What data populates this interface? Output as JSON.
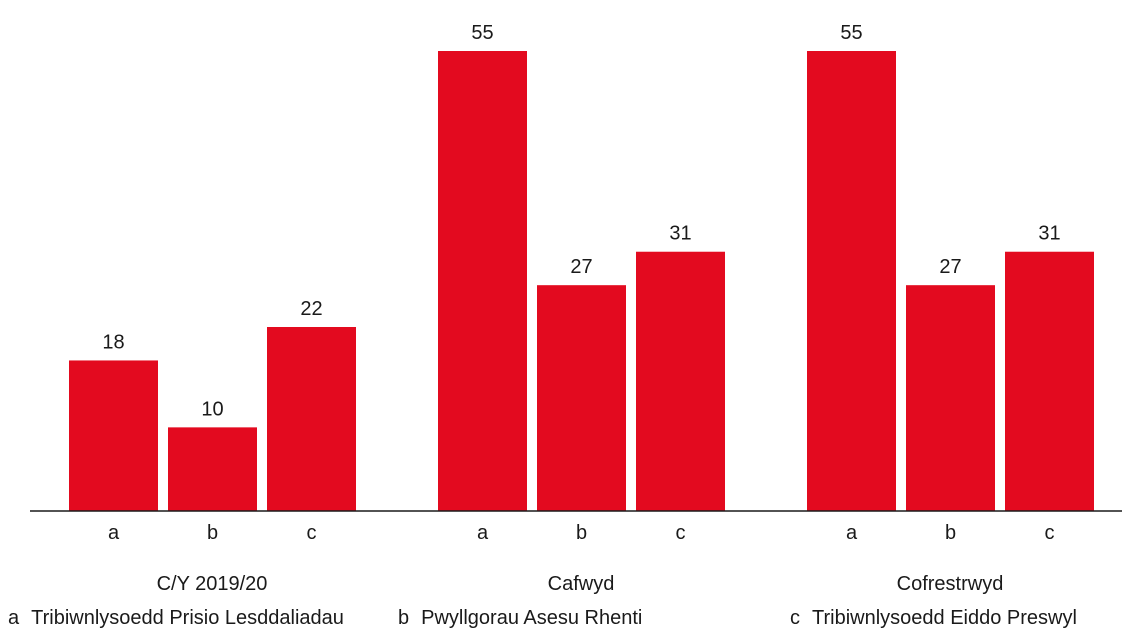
{
  "chart_data": {
    "type": "bar",
    "title": "",
    "xlabel": "",
    "ylabel": "",
    "ylim": [
      0,
      55
    ],
    "bar_color": "#e30a1f",
    "axis_color": "#1a1a1a",
    "groups": [
      {
        "label": "C/Y 2019/20",
        "categories": [
          "a",
          "b",
          "c"
        ],
        "values": [
          18,
          10,
          22
        ]
      },
      {
        "label": "Cafwyd",
        "categories": [
          "a",
          "b",
          "c"
        ],
        "values": [
          55,
          27,
          31
        ]
      },
      {
        "label": "Cofrestrwyd",
        "categories": [
          "a",
          "b",
          "c"
        ],
        "values": [
          55,
          27,
          31
        ]
      }
    ],
    "legend": [
      {
        "key": "a",
        "label": "Tribiwnlysoedd Prisio Lesddaliadau"
      },
      {
        "key": "b",
        "label": "Pwyllgorau Asesu Rhenti"
      },
      {
        "key": "c",
        "label": "Tribiwnlysoedd Eiddo Preswyl"
      }
    ]
  }
}
